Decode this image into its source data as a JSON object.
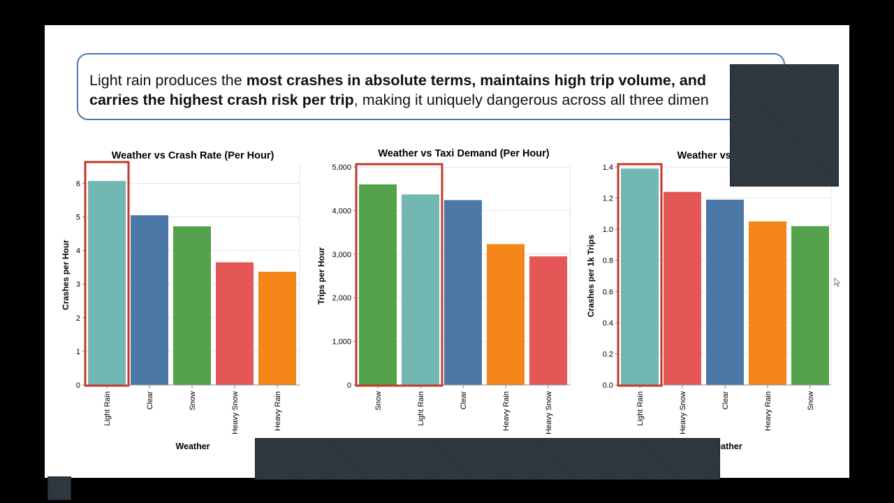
{
  "callout": {
    "t1": "Light rain produces the ",
    "b1": "most crashes in absolute terms, maintains high trip volume, and",
    "b2": "carries the highest crash risk per trip",
    "t2": ", making it uniquely dangerous across all three dimen"
  },
  "colors": {
    "Light Rain": "#72b7b2",
    "Clear": "#4c78a8",
    "Snow": "#54a24b",
    "Heavy Snow": "#e45756",
    "Heavy Rain": "#f58518",
    "highlight": "#c0392b",
    "callout_border": "#4a78b4"
  },
  "chart_data": [
    {
      "type": "bar",
      "title": "Weather vs Crash Rate (Per Hour)",
      "xlabel": "Weather",
      "ylabel": "Crashes per Hour",
      "categories": [
        "Light Rain",
        "Clear",
        "Snow",
        "Heavy Snow",
        "Heavy Rain"
      ],
      "values": [
        6.07,
        5.05,
        4.72,
        3.65,
        3.37
      ],
      "ylim": [
        0,
        6.55
      ],
      "yticks": [
        0,
        1,
        2,
        3,
        4,
        5,
        6
      ],
      "ytick_labels": [
        "0",
        "1",
        "2",
        "3",
        "4",
        "5",
        "6"
      ],
      "highlight": [
        "Light Rain"
      ],
      "grid": true
    },
    {
      "type": "bar",
      "title": "Weather vs Taxi Demand (Per Hour)",
      "xlabel": "",
      "ylabel": "Trips per Hour",
      "categories": [
        "Snow",
        "Light Rain",
        "Clear",
        "Heavy Rain",
        "Heavy Snow"
      ],
      "values": [
        4600,
        4370,
        4240,
        3230,
        2950
      ],
      "ylim": [
        0,
        5000
      ],
      "yticks": [
        0,
        1000,
        2000,
        3000,
        4000,
        5000
      ],
      "ytick_labels": [
        "0",
        "1,000",
        "2,000",
        "3,000",
        "4,000",
        "5,000"
      ],
      "highlight": [
        "Snow",
        "Light Rain"
      ],
      "grid": true
    },
    {
      "type": "bar",
      "title": "Weather vs Crash R",
      "xlabel": "eather",
      "ylabel": "Crashes per 1k Trips",
      "categories": [
        "Light Rain",
        "Heavy Snow",
        "Clear",
        "Heavy Rain",
        "Snow"
      ],
      "values": [
        1.39,
        1.24,
        1.19,
        1.05,
        1.02
      ],
      "ylim": [
        0,
        1.4
      ],
      "yticks": [
        0,
        0.2,
        0.4,
        0.6,
        0.8,
        1.0,
        1.2,
        1.4
      ],
      "ytick_labels": [
        "0.0",
        "0.2",
        "0.4",
        "0.6",
        "0.8",
        "1.0",
        "1.2",
        "1.4"
      ],
      "highlight": [
        "Light Rain"
      ],
      "grid": true
    }
  ]
}
